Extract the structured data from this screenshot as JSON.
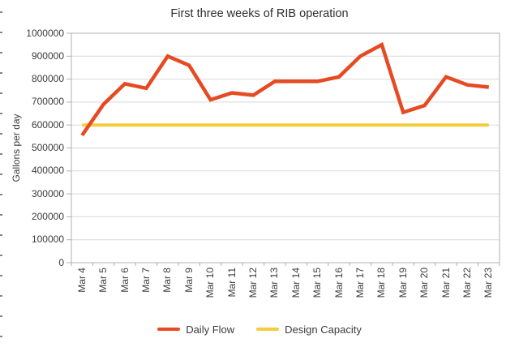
{
  "chart_data": {
    "type": "line",
    "title": "First three weeks of RIB operation",
    "ylabel": "Gallons per day",
    "xlabel": "",
    "categories": [
      "Mar 4",
      "Mar 5",
      "Mar 6",
      "Mar 7",
      "Mar 8",
      "Mar 9",
      "Mar 10",
      "Mar 11",
      "Mar 12",
      "Mar 13",
      "Mar 14",
      "Mar 15",
      "Mar 16",
      "Mar 17",
      "Mar 18",
      "Mar 19",
      "Mar 20",
      "Mar 21",
      "Mar 22",
      "Mar 23"
    ],
    "series": [
      {
        "name": "Daily Flow",
        "color": "#e64a22",
        "values": [
          555000,
          690000,
          780000,
          760000,
          900000,
          860000,
          710000,
          740000,
          730000,
          790000,
          790000,
          790000,
          810000,
          900000,
          950000,
          655000,
          685000,
          810000,
          775000,
          765000
        ]
      },
      {
        "name": "Design Capacity",
        "color": "#f2ce3c",
        "values": [
          600000,
          600000,
          600000,
          600000,
          600000,
          600000,
          600000,
          600000,
          600000,
          600000,
          600000,
          600000,
          600000,
          600000,
          600000,
          600000,
          600000,
          600000,
          600000,
          600000
        ]
      }
    ],
    "ylim": [
      0,
      1000000
    ],
    "ytick_step": 100000,
    "ytick_labels": [
      "0",
      "100000",
      "200000",
      "300000",
      "400000",
      "500000",
      "600000",
      "700000",
      "800000",
      "900000",
      "1000000"
    ],
    "grid": "horizontal",
    "legend_position": "bottom",
    "axis_color": "#b1b1b1",
    "gridline_color": "#d9d9d9",
    "text_color": "#3b3b3b"
  }
}
